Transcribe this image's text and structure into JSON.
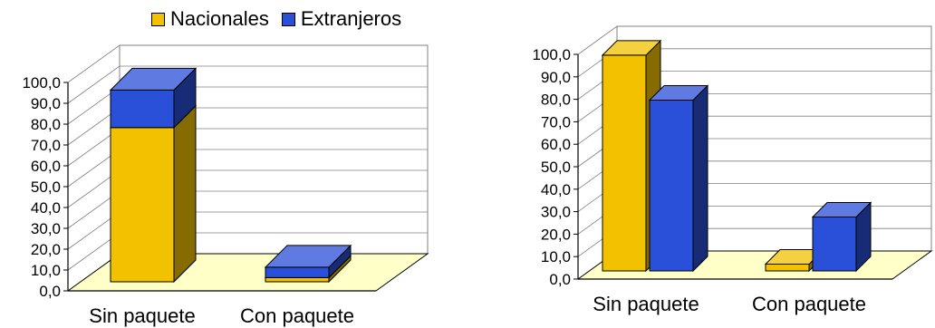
{
  "chart_data": [
    {
      "type": "bar",
      "stacked": true,
      "categories": [
        "Sin paquete",
        "Con paquete"
      ],
      "series": [
        {
          "name": "Nacionales",
          "values": [
            74,
            2
          ]
        },
        {
          "name": "Extranjeros",
          "values": [
            18,
            5
          ]
        }
      ],
      "ylim": [
        0,
        100
      ],
      "yticks": [
        "0,0",
        "10,0",
        "20,0",
        "30,0",
        "40,0",
        "50,0",
        "60,0",
        "70,0",
        "80,0",
        "90,0",
        "100,0"
      ],
      "grid": true,
      "legend": "top"
    },
    {
      "type": "bar",
      "stacked": false,
      "categories": [
        "Sin paquete",
        "Con paquete"
      ],
      "series": [
        {
          "name": "Nacionales",
          "values": [
            96,
            3
          ]
        },
        {
          "name": "Extranjeros",
          "values": [
            76,
            24
          ]
        }
      ],
      "ylim": [
        0,
        100
      ],
      "yticks": [
        "0,0",
        "10,0",
        "20,0",
        "30,0",
        "40,0",
        "50,0",
        "60,0",
        "70,0",
        "80,0",
        "90,0",
        "100,0"
      ],
      "grid": true,
      "legend": "none"
    }
  ],
  "legend": {
    "items": [
      {
        "label": "Nacionales"
      },
      {
        "label": "Extranjeros"
      }
    ]
  },
  "colors": {
    "nacionales": "#f2c200",
    "extranjeros": "#2a4fd8",
    "floor": "#ffffc8",
    "grid": "#808080"
  }
}
